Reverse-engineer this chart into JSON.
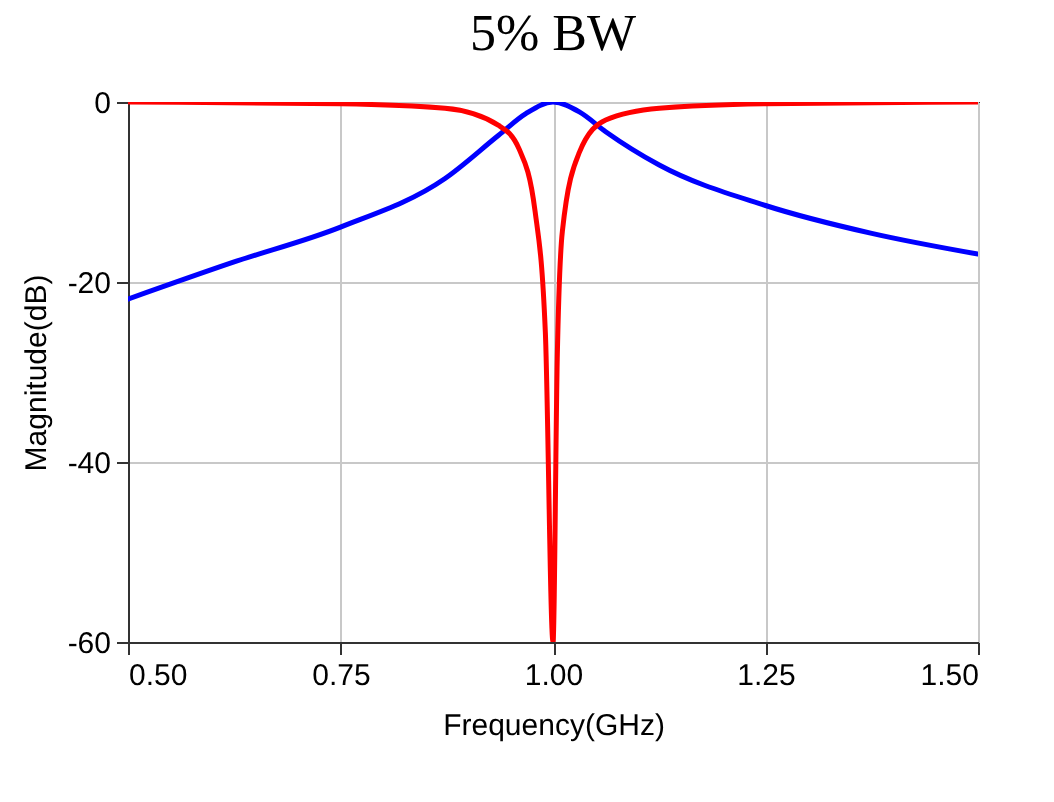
{
  "chart_data": {
    "type": "line",
    "title": "5% BW",
    "xlabel": "Frequency(GHz)",
    "ylabel": "Magnitude(dB)",
    "xlim": [
      0.5,
      1.5
    ],
    "ylim": [
      -60,
      0
    ],
    "xticks": [
      {
        "value": 0.5,
        "label": "0.50"
      },
      {
        "value": 0.75,
        "label": "0.75"
      },
      {
        "value": 1.0,
        "label": "1.00"
      },
      {
        "value": 1.25,
        "label": "1.25"
      },
      {
        "value": 1.5,
        "label": "1.50"
      }
    ],
    "yticks": [
      -60,
      -40,
      -20,
      0
    ],
    "grid": true,
    "marker": "none",
    "line_style": "solid",
    "series": [
      {
        "color": "#0000ff",
        "x": [
          0.5,
          0.624,
          0.75,
          0.873,
          0.936,
          0.968,
          1.0,
          1.031,
          1.062,
          1.125,
          1.25,
          1.375,
          1.5
        ],
        "values": [
          -21.9,
          -17.8,
          -13.9,
          -8.5,
          -3.7,
          -1.3,
          0,
          -1.1,
          -3.3,
          -7.0,
          -11.5,
          -14.6,
          -16.9
        ]
      },
      {
        "color": "#ff0000",
        "x": [
          0.5,
          0.75,
          0.873,
          0.936,
          0.96,
          0.979,
          0.991,
          1.0,
          1.005,
          1.011,
          1.031,
          1.062,
          1.125,
          1.25,
          1.5
        ],
        "values": [
          0,
          -0.2,
          -0.7,
          -2.6,
          -5.2,
          -12.2,
          -25.6,
          -60,
          -28.5,
          -14.4,
          -5.6,
          -2.0,
          -0.7,
          -0.2,
          0
        ]
      }
    ]
  }
}
